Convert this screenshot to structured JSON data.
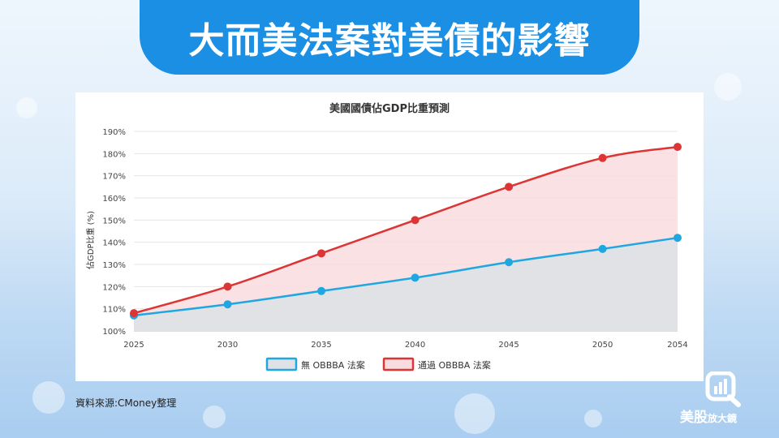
{
  "banner": {
    "title": "大而美法案對美債的影響"
  },
  "source": "資料來源:CMoney整理",
  "logo": {
    "brand_main": "美股",
    "brand_sub": "放大鏡",
    "icon": "magnifier-chart-icon"
  },
  "colors": {
    "banner": "#1a8fe3",
    "series_without": "#1ea7e0",
    "series_with": "#dc3535",
    "fill_with": "#f9dcdf",
    "fill_without": "#dfe1e6"
  },
  "chart_data": {
    "type": "area",
    "title": "美國國債佔GDP比重預測",
    "ylabel": "佔GDP比重 (%)",
    "xlabel": "",
    "x": [
      2025,
      2030,
      2035,
      2040,
      2045,
      2050,
      2054
    ],
    "x_tick_labels": [
      "2025",
      "2030",
      "2035",
      "2040",
      "2045",
      "2050",
      "2054"
    ],
    "ylim": [
      100,
      190
    ],
    "y_ticks": [
      100,
      110,
      120,
      130,
      140,
      150,
      160,
      170,
      180,
      190
    ],
    "y_tick_labels": [
      "100%",
      "110%",
      "120%",
      "130%",
      "140%",
      "150%",
      "160%",
      "170%",
      "180%",
      "190%"
    ],
    "grid": true,
    "legend_position": "bottom",
    "series": [
      {
        "name": "無 OBBBA 法案",
        "values": [
          107,
          112,
          118,
          124,
          131,
          137,
          142
        ]
      },
      {
        "name": "通過 OBBBA 法案",
        "values": [
          108,
          120,
          135,
          150,
          165,
          178,
          183
        ]
      }
    ]
  }
}
